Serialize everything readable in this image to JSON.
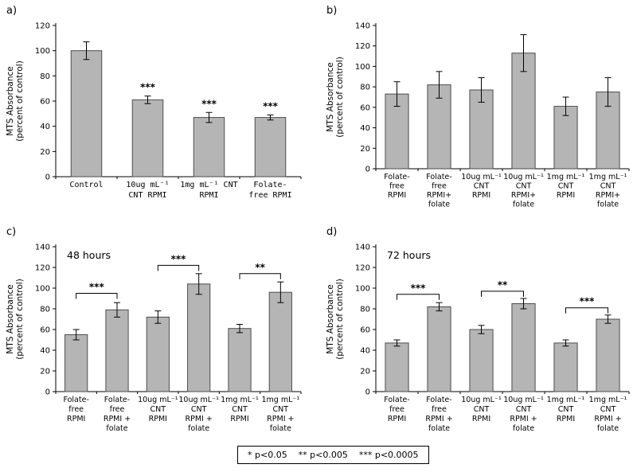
{
  "figure": {
    "panel_letters": {
      "a": "a)",
      "b": "b)",
      "c": "c)",
      "d": "d)"
    },
    "significance_legend": "* p<0.05    ** p<0.005    *** p<0.0005"
  },
  "colors": {
    "bar_fill": "#b5b5b5",
    "bar_stroke": "#4d4d4d",
    "axis": "#000000"
  },
  "chart_data": [
    {
      "id": "a",
      "type": "bar",
      "title": "",
      "ylabel": [
        "MTS Absorbance",
        "(percent of control)"
      ],
      "ylim": [
        0,
        120
      ],
      "ytick_step": 20,
      "categories": [
        "Control",
        "10ug mL⁻¹\nCNT RPMI",
        "1mg mL⁻¹ CNT\nRPMI",
        "Folate-\nfree RPMI"
      ],
      "values": [
        100,
        61,
        47,
        47
      ],
      "errors": [
        7,
        3,
        4,
        2
      ],
      "bar_stars": [
        "",
        "***",
        "***",
        "***"
      ],
      "brackets": []
    },
    {
      "id": "b",
      "type": "bar",
      "title": "",
      "ylabel": [
        "MTS Absorbance",
        "(percent of control)"
      ],
      "ylim": [
        0,
        140
      ],
      "ytick_step": 20,
      "categories": [
        "Folate-\nfree\nRPMI",
        "Folate-\nfree\nRPMI+\nfolate",
        "10ug mL⁻¹\nCNT\nRPMI",
        "10ug mL⁻¹\nCNT\nRPMI+\nfolate",
        "1mg mL⁻¹\nCNT\nRPMI",
        "1mg mL⁻¹\nCNT\nRPMI+\nfolate"
      ],
      "values": [
        73,
        82,
        77,
        113,
        61,
        75
      ],
      "errors": [
        12,
        13,
        12,
        18,
        9,
        14
      ],
      "bar_stars": [
        "",
        "",
        "",
        "",
        "",
        ""
      ],
      "brackets": []
    },
    {
      "id": "c",
      "type": "bar",
      "title": "48 hours",
      "ylabel": [
        "MTS Absorbance",
        "(percent of control)"
      ],
      "ylim": [
        0,
        140
      ],
      "ytick_step": 20,
      "categories": [
        "Folate-\nfree\nRPMI",
        "Folate-\nfree\nRPMI +\nfolate",
        "10ug mL⁻¹\nCNT\nRPMI",
        "10ug mL⁻¹\nCNT\nRPMI +\nfolate",
        "1mg mL⁻¹\nCNT\nRPMI",
        "1mg mL⁻¹\nCNT\nRPMI +\nfolate"
      ],
      "values": [
        55,
        79,
        72,
        104,
        61,
        96
      ],
      "errors": [
        5,
        7,
        6,
        10,
        4,
        10
      ],
      "bar_stars": [
        "",
        "",
        "",
        "",
        "",
        ""
      ],
      "brackets": [
        {
          "from": 0,
          "to": 1,
          "y": 95,
          "label": "***"
        },
        {
          "from": 2,
          "to": 3,
          "y": 122,
          "label": "***"
        },
        {
          "from": 4,
          "to": 5,
          "y": 114,
          "label": "**"
        }
      ]
    },
    {
      "id": "d",
      "type": "bar",
      "title": "72 hours",
      "ylabel": [
        "MTS Absorbance",
        "(percent of control)"
      ],
      "ylim": [
        0,
        140
      ],
      "ytick_step": 20,
      "categories": [
        "Folate-\nfree\nRPMI",
        "Folate-\nfree\nRPMI +\nfolate",
        "10ug mL⁻¹\nCNT\nRPMI",
        "10ug mL⁻¹\nCNT\nRPMI +\nfolate",
        "1mg mL⁻¹\nCNT\nRPMI",
        "1mg mL⁻¹\nCNT\nRPMI +\nfolate"
      ],
      "values": [
        47,
        82,
        60,
        85,
        47,
        70
      ],
      "errors": [
        3,
        4,
        4,
        5,
        3,
        4
      ],
      "bar_stars": [
        "",
        "",
        "",
        "",
        "",
        ""
      ],
      "brackets": [
        {
          "from": 0,
          "to": 1,
          "y": 94,
          "label": "***"
        },
        {
          "from": 2,
          "to": 3,
          "y": 97,
          "label": "**"
        },
        {
          "from": 4,
          "to": 5,
          "y": 81,
          "label": "***"
        }
      ]
    }
  ]
}
